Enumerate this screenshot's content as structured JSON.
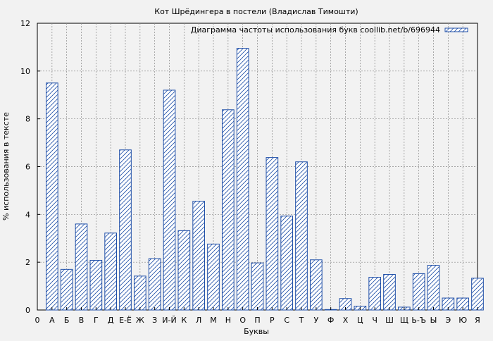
{
  "chart_data": {
    "type": "bar",
    "title": "Кот Шрёдингера в постели (Владислав Тимошти)",
    "xlabel": "Буквы",
    "ylabel": "% использования в тексте",
    "legend": "Диаграмма частоты использования букв coollib.net/b/696944",
    "legend_position": "top-right",
    "grid": true,
    "ylim": [
      0,
      12
    ],
    "yticks": [
      0,
      2,
      4,
      6,
      8,
      10,
      12
    ],
    "x_tick_labels": [
      "0",
      "А",
      "Б",
      "В",
      "Г",
      "Д",
      "Е-Ё",
      "Ж",
      "З",
      "И-Й",
      "К",
      "Л",
      "М",
      "Н",
      "О",
      "П",
      "Р",
      "С",
      "Т",
      "У",
      "Ф",
      "Х",
      "Ц",
      "Ч",
      "Ш",
      "Щ",
      "Ь-Ъ",
      "Ы",
      "Э",
      "Ю",
      "Я"
    ],
    "categories": [
      "А",
      "Б",
      "В",
      "Г",
      "Д",
      "Е-Ё",
      "Ж",
      "З",
      "И-Й",
      "К",
      "Л",
      "М",
      "Н",
      "О",
      "П",
      "Р",
      "С",
      "Т",
      "У",
      "Ф",
      "Х",
      "Ц",
      "Ч",
      "Ш",
      "Щ",
      "Ь-Ъ",
      "Ы",
      "Э",
      "Ю",
      "Я"
    ],
    "values": [
      9.5,
      1.7,
      3.6,
      2.08,
      3.22,
      6.7,
      1.42,
      2.15,
      9.2,
      3.32,
      4.55,
      2.76,
      8.38,
      10.95,
      1.97,
      6.38,
      3.93,
      6.2,
      2.1,
      0.02,
      0.48,
      0.16,
      1.37,
      1.49,
      0.12,
      1.52,
      1.87,
      0.5,
      0.5,
      1.33
    ],
    "colors": {
      "bar_stroke": "#1f4fa8",
      "hatch": "#1f4fa8",
      "bar_fill": "#ffffff",
      "background": "#f2f2f2",
      "grid": "#888888"
    }
  }
}
